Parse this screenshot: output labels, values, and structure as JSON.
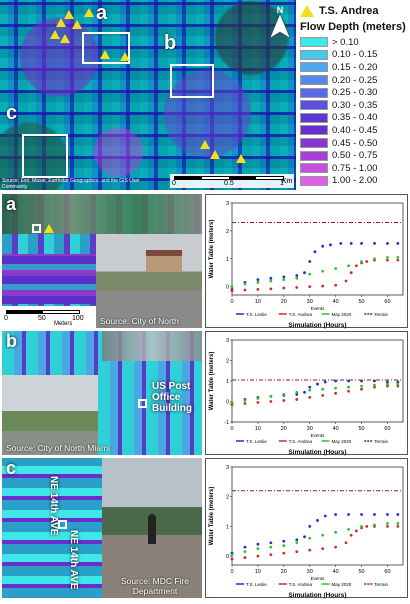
{
  "legend": {
    "event_label": "T.S. Andrea",
    "title": "Flow Depth (meters)",
    "items": [
      {
        "label": "> 0.10",
        "color": "#3ee8e8"
      },
      {
        "label": "0.10 - 0.15",
        "color": "#46c8ec"
      },
      {
        "label": "0.15 - 0.20",
        "color": "#4ea8ee"
      },
      {
        "label": "0.20 - 0.25",
        "color": "#5688ec"
      },
      {
        "label": "0.25 - 0.30",
        "color": "#5a6ae6"
      },
      {
        "label": "0.30 - 0.35",
        "color": "#5c50de"
      },
      {
        "label": "0.35 - 0.40",
        "color": "#5c38d6"
      },
      {
        "label": "0.40 - 0.45",
        "color": "#6a2ecc"
      },
      {
        "label": "0.45 - 0.50",
        "color": "#8a34d2"
      },
      {
        "label": "0.50 - 0.75",
        "color": "#a840d8"
      },
      {
        "label": "0.75 - 1.00",
        "color": "#c84ede"
      },
      {
        "label": "1.00 - 2.00",
        "color": "#e060e6"
      }
    ]
  },
  "overview": {
    "labels": {
      "a": "a",
      "b": "b",
      "c": "c"
    },
    "attribution": "Source: Esri, Maxar, Earthstar Geographics, and the GIS User Community",
    "scale": {
      "ticks": [
        "0",
        "0.5",
        "1"
      ],
      "unit": "Km"
    }
  },
  "panels": [
    {
      "letter": "a",
      "source": "Source: City of North Miami",
      "scale": {
        "ticks": [
          "0",
          "50",
          "100"
        ],
        "unit": "Meters"
      },
      "annotation": ""
    },
    {
      "letter": "b",
      "source": "Source: City of North Miami",
      "annotation": "US Post Office Building"
    },
    {
      "letter": "c",
      "source": "Source: MDC Fire Department",
      "streets": [
        "NE 14th AVE",
        "NE 14th AVE"
      ]
    }
  ],
  "chart_data": [
    {
      "type": "scatter",
      "xlabel": "Simulation (Hours)",
      "ylabel": "Water Table (meters)",
      "xlim": [
        0,
        66
      ],
      "ylim": [
        -0.3,
        3
      ],
      "xticks": [
        0,
        10,
        20,
        30,
        40,
        50,
        60
      ],
      "yticks": [
        0,
        1,
        2,
        3
      ],
      "legend_title": "Events",
      "series": [
        {
          "name": "T.S. Leslie",
          "color": "#1a2fd6",
          "x": [
            0,
            5,
            10,
            15,
            20,
            25,
            28,
            30,
            32,
            35,
            38,
            42,
            46,
            50,
            55,
            60,
            64
          ],
          "y": [
            -0.1,
            0.15,
            0.25,
            0.3,
            0.35,
            0.4,
            0.5,
            0.9,
            1.25,
            1.45,
            1.5,
            1.55,
            1.55,
            1.55,
            1.55,
            1.55,
            1.55
          ]
        },
        {
          "name": "T.S. Andrea",
          "color": "#d42a2a",
          "x": [
            0,
            5,
            10,
            15,
            20,
            25,
            30,
            35,
            40,
            44,
            46,
            48,
            50,
            52,
            55,
            60,
            64
          ],
          "y": [
            -0.15,
            -0.12,
            -0.1,
            -0.08,
            -0.05,
            -0.03,
            0,
            0.02,
            0.05,
            0.2,
            0.5,
            0.75,
            0.85,
            0.9,
            0.95,
            0.95,
            0.95
          ]
        },
        {
          "name": "May 2020",
          "color": "#2ec42e",
          "x": [
            0,
            5,
            10,
            15,
            20,
            25,
            30,
            35,
            40,
            45,
            50,
            55,
            60,
            64
          ],
          "y": [
            0.0,
            0.1,
            0.15,
            0.2,
            0.25,
            0.3,
            0.45,
            0.55,
            0.65,
            0.75,
            0.9,
            1.0,
            1.05,
            1.05
          ]
        },
        {
          "name": "Terrain",
          "color": "#9a1a1a",
          "x": [
            0,
            66
          ],
          "y": [
            2.3,
            2.3
          ],
          "dash": true
        }
      ]
    },
    {
      "type": "scatter",
      "xlabel": "Simulation (Hours)",
      "ylabel": "Water Table (meters)",
      "xlim": [
        0,
        66
      ],
      "ylim": [
        -1,
        3
      ],
      "xticks": [
        0,
        10,
        20,
        30,
        40,
        50,
        60
      ],
      "yticks": [
        -1,
        0,
        1,
        2,
        3
      ],
      "legend_title": "Events",
      "series": [
        {
          "name": "T.S. Leslie",
          "color": "#1a2fd6",
          "x": [
            0,
            5,
            10,
            15,
            20,
            25,
            28,
            30,
            33,
            36,
            40,
            45,
            50,
            55,
            60,
            64
          ],
          "y": [
            -0.1,
            0.1,
            0.2,
            0.25,
            0.3,
            0.35,
            0.45,
            0.7,
            0.85,
            0.95,
            1.0,
            1.0,
            1.0,
            1.0,
            0.95,
            0.95
          ]
        },
        {
          "name": "T.S. Andrea",
          "color": "#d42a2a",
          "x": [
            0,
            5,
            10,
            15,
            20,
            25,
            30,
            35,
            40,
            45,
            50,
            55,
            60,
            64
          ],
          "y": [
            -0.15,
            -0.1,
            -0.05,
            0.0,
            0.05,
            0.1,
            0.2,
            0.3,
            0.4,
            0.5,
            0.6,
            0.7,
            0.75,
            0.75
          ]
        },
        {
          "name": "May 2020",
          "color": "#2ec42e",
          "x": [
            0,
            5,
            10,
            15,
            20,
            25,
            30,
            35,
            40,
            45,
            50,
            55,
            60,
            64
          ],
          "y": [
            -0.05,
            0.05,
            0.15,
            0.25,
            0.35,
            0.45,
            0.55,
            0.6,
            0.65,
            0.7,
            0.75,
            0.8,
            0.85,
            0.85
          ]
        },
        {
          "name": "Terrain",
          "color": "#9a1a1a",
          "x": [
            0,
            66
          ],
          "y": [
            1.05,
            1.05
          ],
          "dash": true
        }
      ]
    },
    {
      "type": "scatter",
      "xlabel": "Simulation (Hours)",
      "ylabel": "Water Table (meters)",
      "xlim": [
        0,
        66
      ],
      "ylim": [
        -0.3,
        3
      ],
      "xticks": [
        0,
        10,
        20,
        30,
        40,
        50,
        60
      ],
      "yticks": [
        0,
        1,
        2,
        3
      ],
      "legend_title": "Events",
      "series": [
        {
          "name": "T.S. Leslie",
          "color": "#1a2fd6",
          "x": [
            0,
            5,
            10,
            15,
            20,
            25,
            28,
            30,
            33,
            36,
            40,
            45,
            50,
            55,
            60,
            64
          ],
          "y": [
            0.1,
            0.3,
            0.4,
            0.45,
            0.5,
            0.55,
            0.65,
            1.0,
            1.2,
            1.35,
            1.4,
            1.4,
            1.4,
            1.4,
            1.4,
            1.4
          ]
        },
        {
          "name": "T.S. Andrea",
          "color": "#d42a2a",
          "x": [
            0,
            5,
            10,
            15,
            20,
            25,
            30,
            35,
            40,
            44,
            46,
            48,
            50,
            52,
            55,
            60,
            64
          ],
          "y": [
            -0.1,
            -0.05,
            0.0,
            0.05,
            0.1,
            0.15,
            0.2,
            0.25,
            0.3,
            0.45,
            0.7,
            0.85,
            0.95,
            1.0,
            1.0,
            1.0,
            1.0
          ]
        },
        {
          "name": "May 2020",
          "color": "#2ec42e",
          "x": [
            0,
            5,
            10,
            15,
            20,
            25,
            30,
            35,
            40,
            45,
            50,
            55,
            60,
            64
          ],
          "y": [
            0.05,
            0.15,
            0.25,
            0.3,
            0.35,
            0.45,
            0.6,
            0.7,
            0.8,
            0.9,
            1.0,
            1.05,
            1.1,
            1.1
          ]
        },
        {
          "name": "Terrain",
          "color": "#9a1a1a",
          "x": [
            0,
            66
          ],
          "y": [
            2.2,
            2.2
          ],
          "dash": true
        }
      ]
    }
  ]
}
